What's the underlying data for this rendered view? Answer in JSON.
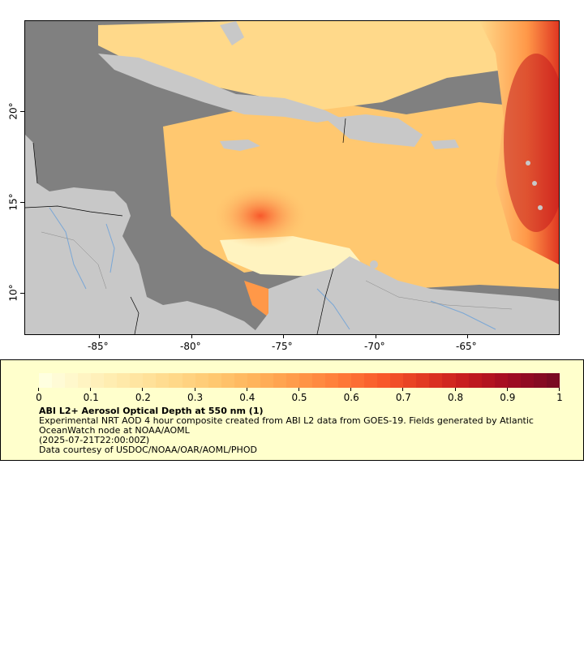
{
  "map": {
    "longitude_labels": [
      "-85°",
      "-80°",
      "-75°",
      "-70°",
      "-65°"
    ],
    "latitude_labels": [
      "10°",
      "15°",
      "20°"
    ],
    "colors": {
      "land": "#c8c8c8",
      "no_data": "#808080",
      "rivers": "#7aa7d6",
      "borders": "#000000"
    }
  },
  "colorbar": {
    "min": 0,
    "max": 1,
    "tick_labels": [
      "0",
      "0.1",
      "0.2",
      "0.3",
      "0.4",
      "0.5",
      "0.6",
      "0.7",
      "0.8",
      "0.9",
      "1"
    ],
    "palette": [
      "#ffffe0",
      "#fff3c0",
      "#ffe7a5",
      "#ffd98a",
      "#ffc870",
      "#ffb25a",
      "#ff9848",
      "#ff7a38",
      "#f8582a",
      "#e03722",
      "#c41a1e",
      "#a00c22",
      "#7a0a22"
    ]
  },
  "legend": {
    "title": "ABI L2+ Aerosol Optical Depth at 550 nm (1)",
    "line1": "Experimental NRT AOD 4 hour composite created from ABI L2 data from GOES-19. Fields generated by Atlantic",
    "line2": "OceanWatch node at NOAA/AOML",
    "line3": "(2025-07-21T22:00:00Z)",
    "line4": "Data courtesy of USDOC/NOAA/OAR/AOML/PHOD"
  }
}
